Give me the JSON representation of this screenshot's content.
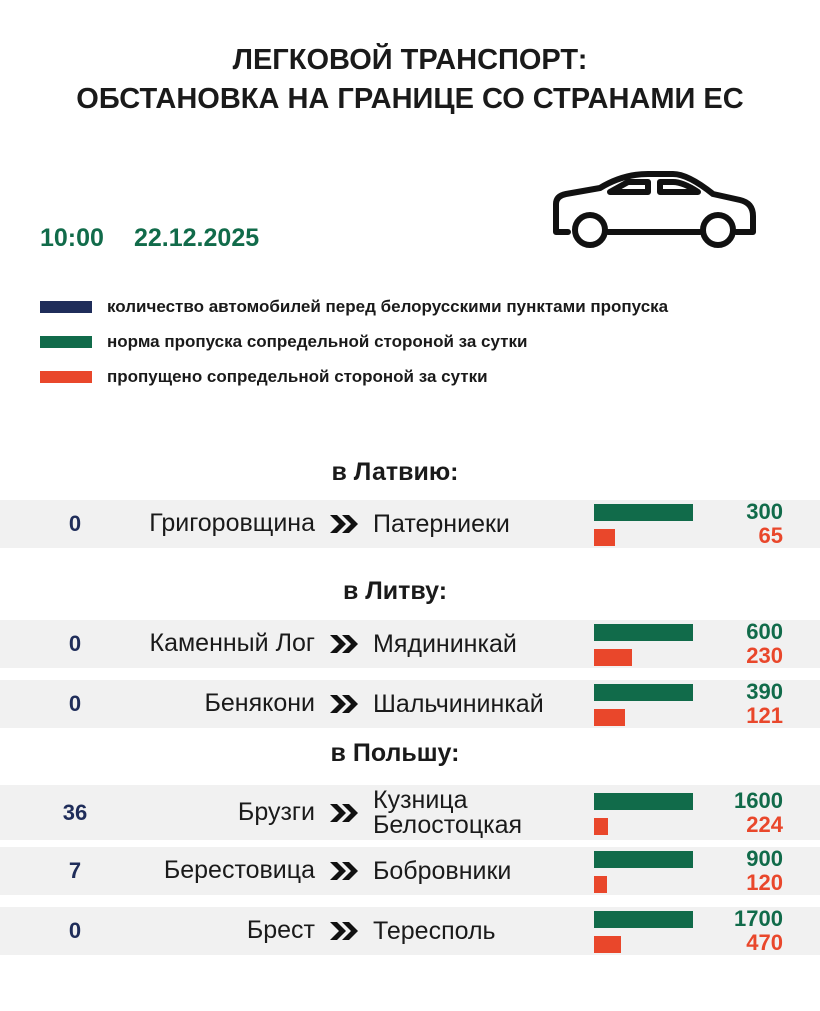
{
  "header": {
    "title_line1": "ЛЕГКОВОЙ ТРАНСПОРТ:",
    "title_line2": "ОБСТАНОВКА НА ГРАНИЦЕ СО СТРАНАМИ ЕС",
    "time": "10:00",
    "date": "22.12.2025"
  },
  "legend": [
    "количество автомобилей перед белорусскими пунктами пропуска",
    "норма пропуска сопредельной стороной за сутки",
    "пропущено сопредельной стороной за сутки"
  ],
  "sections": [
    {
      "heading": "в Латвию:",
      "rows": [
        {
          "queue": 0,
          "from": "Григоровщина",
          "to": "Патерниеки",
          "norm": 300,
          "passed": 65
        }
      ]
    },
    {
      "heading": "в Литву:",
      "rows": [
        {
          "queue": 0,
          "from": "Каменный Лог",
          "to": "Мядининкай",
          "norm": 600,
          "passed": 230
        },
        {
          "queue": 0,
          "from": "Бенякони",
          "to": "Шальчининкай",
          "norm": 390,
          "passed": 121
        }
      ]
    },
    {
      "heading": "в Польшу:",
      "rows": [
        {
          "queue": 36,
          "from": "Брузги",
          "to": "Кузница Белостоцкая",
          "norm": 1600,
          "passed": 224
        },
        {
          "queue": 7,
          "from": "Берестовица",
          "to": "Бобровники",
          "norm": 900,
          "passed": 120
        },
        {
          "queue": 0,
          "from": "Брест",
          "to": "Тересполь",
          "norm": 1700,
          "passed": 470
        }
      ]
    }
  ]
}
